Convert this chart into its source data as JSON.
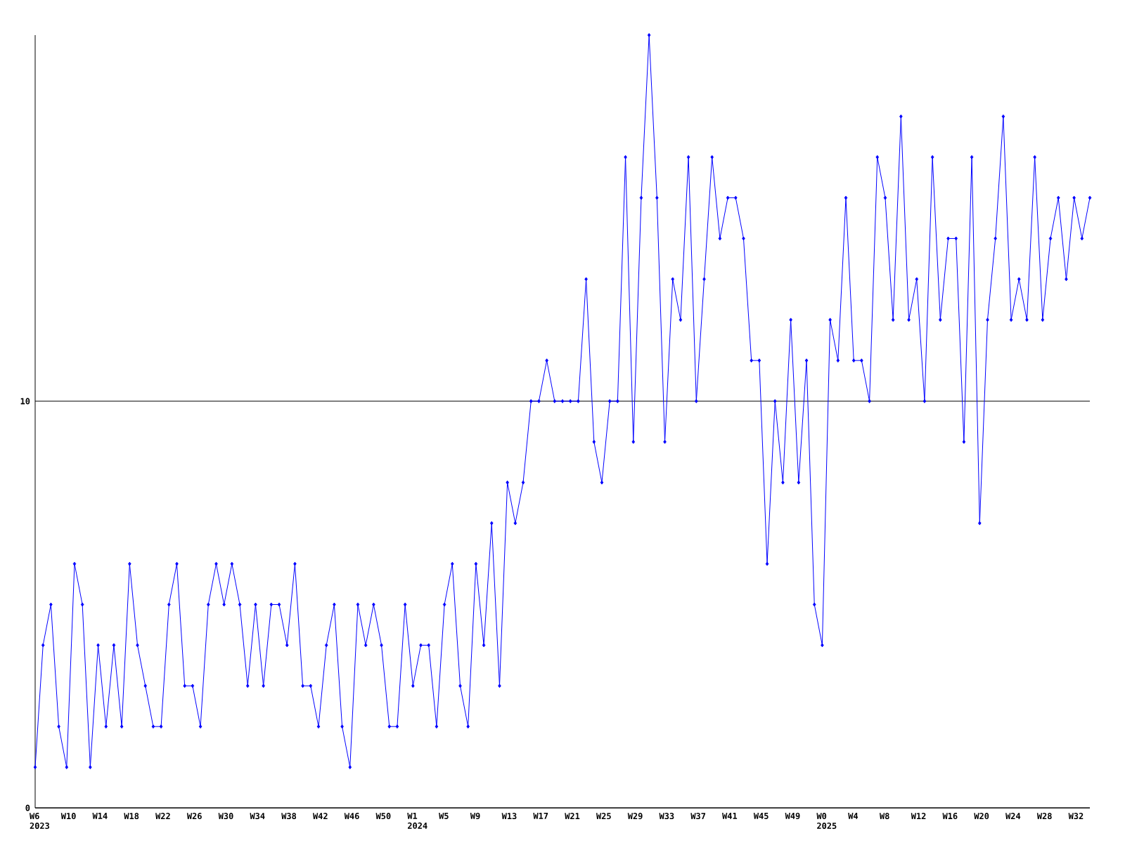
{
  "chart_data": {
    "type": "line",
    "color": "#0000ff",
    "marker": "diamond",
    "grid": "y",
    "ylim": [
      0,
      19
    ],
    "yticks": [
      0,
      10
    ],
    "categories": [
      "W6 2023",
      null,
      null,
      null,
      "W10",
      null,
      null,
      null,
      "W14",
      null,
      null,
      null,
      "W18",
      null,
      null,
      null,
      "W22",
      null,
      null,
      null,
      "W26",
      null,
      null,
      null,
      "W30",
      null,
      null,
      null,
      "W34",
      null,
      null,
      null,
      "W38",
      null,
      null,
      null,
      "W42",
      null,
      null,
      null,
      "W46",
      null,
      null,
      null,
      "W50",
      null,
      null,
      null,
      "W1 2024",
      null,
      null,
      null,
      "W5",
      null,
      null,
      null,
      "W9",
      null,
      null,
      null,
      "W13",
      null,
      null,
      null,
      "W17",
      null,
      null,
      null,
      "W21",
      null,
      null,
      null,
      "W25",
      null,
      null,
      null,
      "W29",
      null,
      null,
      null,
      "W33",
      null,
      null,
      null,
      "W37",
      null,
      null,
      null,
      "W41",
      null,
      null,
      null,
      "W45",
      null,
      null,
      null,
      "W49",
      null,
      null,
      null,
      "W0 2025",
      null,
      null,
      null,
      "W4",
      null,
      null,
      null,
      "W8",
      null,
      null,
      null,
      "W12",
      null,
      null,
      null,
      "W16",
      null,
      null,
      null,
      "W20",
      null,
      null,
      null,
      "W24",
      null,
      null,
      null,
      "W28",
      null,
      null,
      null,
      "W32",
      null,
      null
    ],
    "values": [
      1,
      4,
      5,
      2,
      1,
      6,
      5,
      1,
      4,
      2,
      4,
      2,
      6,
      4,
      3,
      2,
      2,
      5,
      6,
      3,
      3,
      2,
      5,
      6,
      5,
      6,
      5,
      3,
      5,
      3,
      5,
      5,
      4,
      6,
      3,
      3,
      2,
      4,
      5,
      2,
      1,
      5,
      4,
      5,
      4,
      2,
      2,
      5,
      3,
      4,
      4,
      2,
      5,
      6,
      3,
      2,
      6,
      4,
      7,
      3,
      8,
      7,
      8,
      10,
      10,
      11,
      10,
      10,
      10,
      10,
      13,
      9,
      8,
      10,
      10,
      16,
      9,
      15,
      19,
      15,
      9,
      13,
      12,
      16,
      10,
      13,
      16,
      14,
      15,
      15,
      14,
      11,
      11,
      6,
      10,
      8,
      12,
      8,
      11,
      5,
      4,
      12,
      11,
      15,
      11,
      11,
      10,
      16,
      15,
      12,
      17,
      12,
      13,
      10,
      16,
      12,
      14,
      14,
      9,
      16,
      7,
      12,
      14,
      17,
      12,
      13,
      12,
      16,
      12,
      14,
      15,
      13,
      15,
      14,
      15
    ]
  }
}
